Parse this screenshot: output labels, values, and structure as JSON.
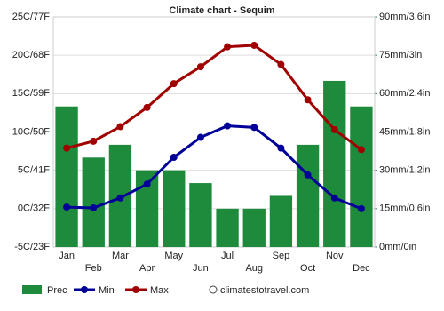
{
  "chart_data": {
    "type": "bar",
    "title": "Climate chart - Sequim",
    "categories": [
      "Jan",
      "Feb",
      "Mar",
      "Apr",
      "May",
      "Jun",
      "Jul",
      "Aug",
      "Sep",
      "Oct",
      "Nov",
      "Dec"
    ],
    "series": [
      {
        "name": "Prec",
        "type": "bar",
        "axis": "y2",
        "color": "#1e8b3c",
        "values": [
          55,
          35,
          40,
          30,
          30,
          25,
          15,
          15,
          20,
          40,
          65,
          55
        ]
      },
      {
        "name": "Min",
        "type": "line",
        "color": "#000099",
        "values": [
          0.2,
          0.1,
          1.4,
          3.2,
          6.7,
          9.3,
          10.8,
          10.6,
          7.9,
          4.4,
          1.4,
          0
        ]
      },
      {
        "name": "Max",
        "type": "line",
        "color": "#a00000",
        "values": [
          7.9,
          8.8,
          10.7,
          13.2,
          16.3,
          18.5,
          21.1,
          21.3,
          18.8,
          14.2,
          10.3,
          7.7
        ]
      }
    ],
    "ylim": [
      -5,
      25
    ],
    "yticks": [
      {
        "value": -5,
        "label": "-5C/23F"
      },
      {
        "value": 0,
        "label": "0C/32F"
      },
      {
        "value": 5,
        "label": "5C/41F"
      },
      {
        "value": 10,
        "label": "10C/50F"
      },
      {
        "value": 15,
        "label": "15C/59F"
      },
      {
        "value": 20,
        "label": "20C/68F"
      },
      {
        "value": 25,
        "label": "25C/77F"
      }
    ],
    "y2lim": [
      0,
      90
    ],
    "y2ticks": [
      {
        "value": 0,
        "label": "0mm/0in"
      },
      {
        "value": 15,
        "label": "15mm/0.6in"
      },
      {
        "value": 30,
        "label": "30mm/1.2in"
      },
      {
        "value": 45,
        "label": "45mm/1.8in"
      },
      {
        "value": 60,
        "label": "60mm/2.4in"
      },
      {
        "value": 75,
        "label": "75mm/3in"
      },
      {
        "value": 90,
        "label": "90mm/3.6in"
      }
    ],
    "grid": true,
    "credit": "climatestotravel.com"
  }
}
